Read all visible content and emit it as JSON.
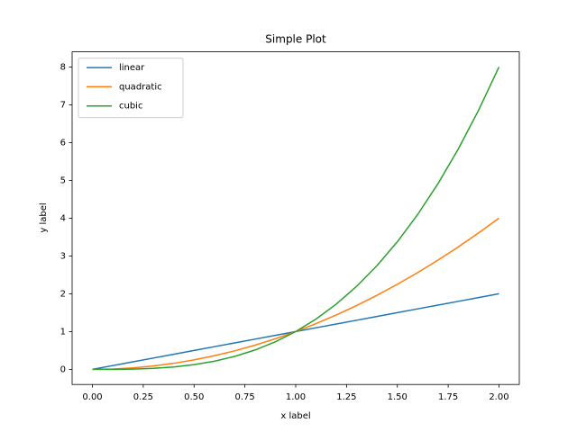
{
  "chart_data": {
    "type": "line",
    "title": "Simple Plot",
    "x_label": "x label",
    "y_label": "y label",
    "x": [
      0,
      0.1,
      0.2,
      0.3,
      0.4,
      0.5,
      0.6,
      0.7,
      0.8,
      0.9,
      1,
      1.1,
      1.2,
      1.3,
      1.4,
      1.5,
      1.6,
      1.7,
      1.8,
      1.9,
      2
    ],
    "series": [
      {
        "name": "linear",
        "color": "#1f77b4",
        "values": [
          0,
          0.1,
          0.2,
          0.3,
          0.4,
          0.5,
          0.6,
          0.7,
          0.8,
          0.9,
          1,
          1.1,
          1.2,
          1.3,
          1.4,
          1.5,
          1.6,
          1.7,
          1.8,
          1.9,
          2
        ]
      },
      {
        "name": "quadratic",
        "color": "#ff7f0e",
        "values": [
          0,
          0.01,
          0.04,
          0.09,
          0.16,
          0.25,
          0.36,
          0.49,
          0.64,
          0.81,
          1,
          1.21,
          1.44,
          1.69,
          1.96,
          2.25,
          2.56,
          2.89,
          3.24,
          3.61,
          4
        ]
      },
      {
        "name": "cubic",
        "color": "#2ca02c",
        "values": [
          0,
          0.001,
          0.008,
          0.027,
          0.064,
          0.125,
          0.216,
          0.343,
          0.512,
          0.729,
          1,
          1.331,
          1.728,
          2.197,
          2.744,
          3.375,
          4.096,
          4.913,
          5.832,
          6.859,
          8
        ]
      }
    ],
    "xlim": [
      -0.1,
      2.1
    ],
    "ylim": [
      -0.4,
      8.4
    ],
    "xticks": [
      {
        "value": 0,
        "label": "0.00"
      },
      {
        "value": 0.25,
        "label": "0.25"
      },
      {
        "value": 0.5,
        "label": "0.50"
      },
      {
        "value": 0.75,
        "label": "0.75"
      },
      {
        "value": 1,
        "label": "1.00"
      },
      {
        "value": 1.25,
        "label": "1.25"
      },
      {
        "value": 1.5,
        "label": "1.50"
      },
      {
        "value": 1.75,
        "label": "1.75"
      },
      {
        "value": 2,
        "label": "2.00"
      }
    ],
    "yticks": [
      0,
      1,
      2,
      3,
      4,
      5,
      6,
      7,
      8
    ],
    "legend": "upper left"
  }
}
